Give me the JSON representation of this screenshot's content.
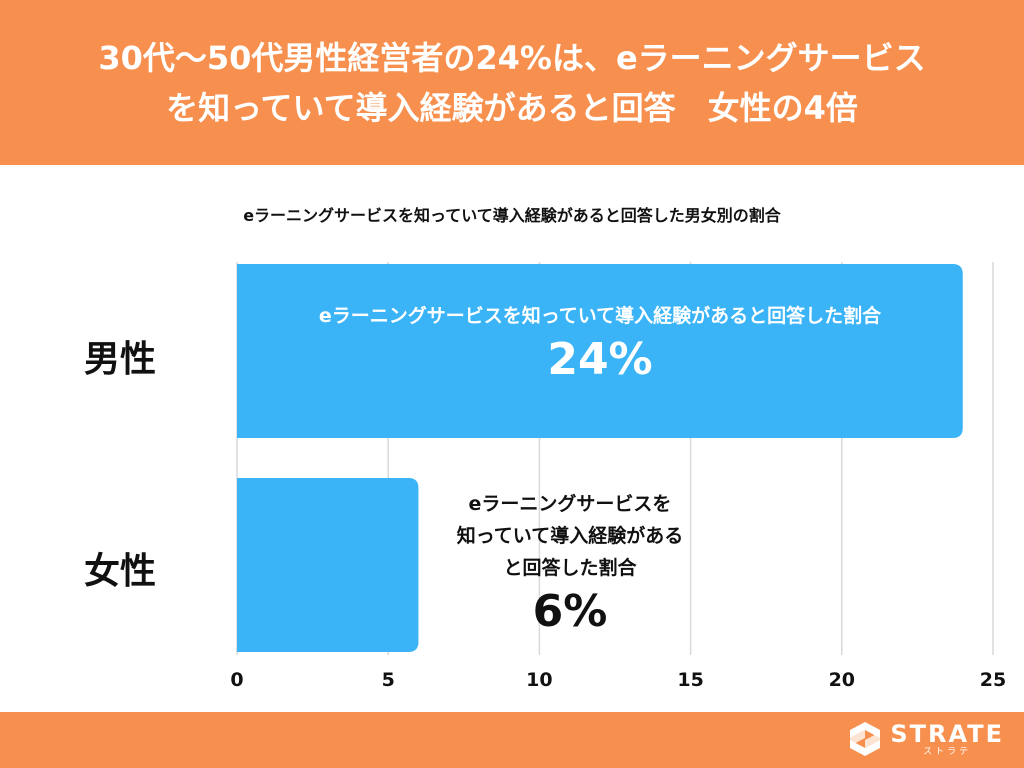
{
  "header": {
    "line1": "30代〜50代男性経営者の24%は、eラーニングサービス",
    "line2": "を知っていて導入経験があると回答　女性の4倍"
  },
  "chart_data": {
    "type": "bar",
    "orientation": "horizontal",
    "title": "eラーニングサービスを知っていて導入経験があると回答した男女別の割合",
    "categories": [
      "男性",
      "女性"
    ],
    "values": [
      24,
      6
    ],
    "value_labels": [
      "24%",
      "6%"
    ],
    "bar_descriptions": [
      "eラーニングサービスを知っていて導入経験があると回答した割合",
      [
        "eラーニングサービスを",
        "知っていて導入経験がある",
        "と回答した割合"
      ]
    ],
    "xlim": [
      0,
      25
    ],
    "xticks": [
      "0",
      "5",
      "10",
      "15",
      "20",
      "25"
    ],
    "grid": true,
    "colors": {
      "bar": "#3BB4F7",
      "grid": "#d9d9d9"
    }
  },
  "footer": {
    "brand": "STRATE",
    "brand_kana": "ストラテ",
    "logo_icon": "strate-s-logo-icon",
    "color": "#F7904E"
  }
}
